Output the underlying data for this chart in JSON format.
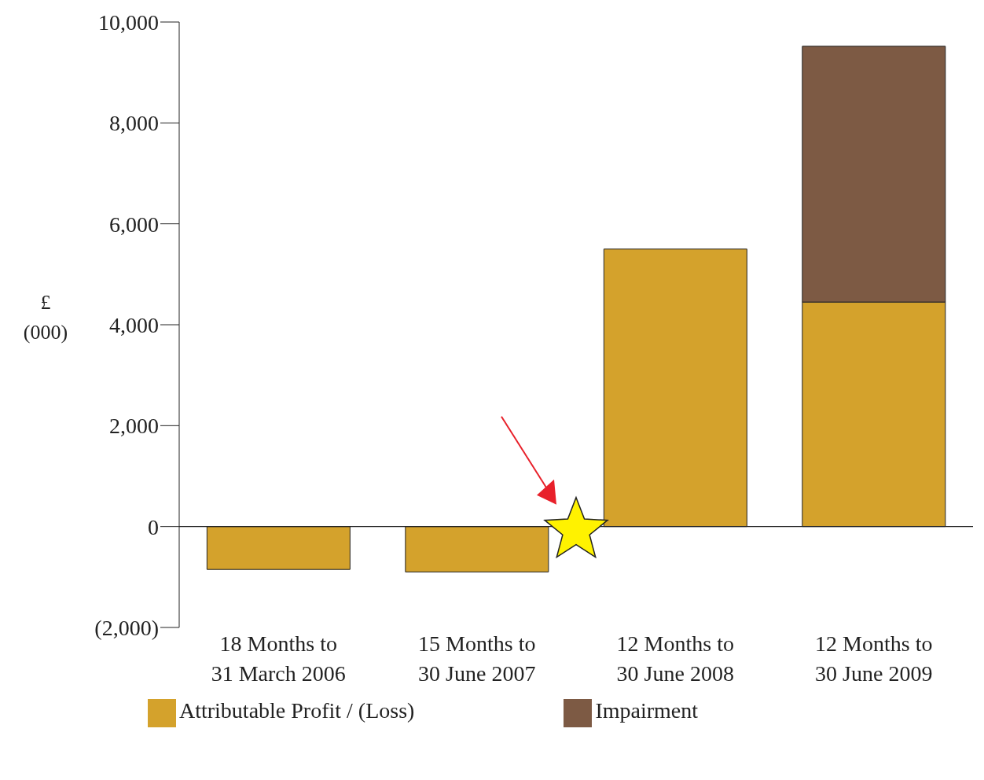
{
  "chart_data": {
    "type": "bar",
    "stacked": true,
    "ylabel": "£ (000)",
    "categories": [
      "18 Months to\n31 March 2006",
      "15 Months to\n30 June 2007",
      "12 Months to\n30 June 2008",
      "12 Months to\n30 June 2009"
    ],
    "series": [
      {
        "name": "Attributable Profit / (Loss)",
        "color": "#d4a22c",
        "values": [
          -850,
          -900,
          5500,
          4450
        ]
      },
      {
        "name": "Impairment",
        "color": "#7d5a44",
        "values": [
          null,
          null,
          null,
          5070
        ]
      }
    ],
    "ylim": [
      -2000,
      10000
    ],
    "yticks": [
      {
        "value": -2000,
        "label": "(2,000)"
      },
      0,
      {
        "value": 2000,
        "label": "2,000"
      },
      {
        "value": 4000,
        "label": "4,000"
      },
      {
        "value": 6000,
        "label": "6,000"
      },
      {
        "value": 8000,
        "label": "8,000"
      },
      {
        "value": 10000,
        "label": "10,000"
      }
    ],
    "legend": "bottom"
  }
}
